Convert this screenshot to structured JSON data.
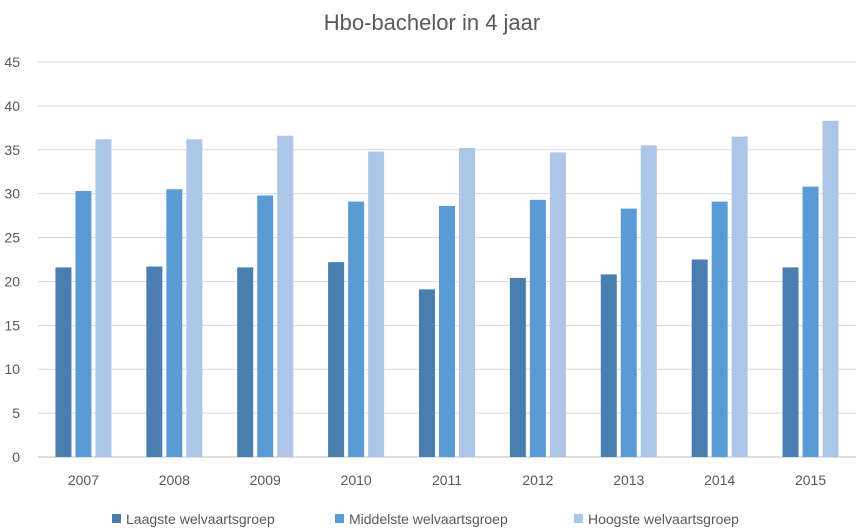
{
  "chart_data": {
    "type": "bar",
    "title": "Hbo-bachelor in 4 jaar",
    "xlabel": "",
    "ylabel": "",
    "categories": [
      "2007",
      "2008",
      "2009",
      "2010",
      "2011",
      "2012",
      "2013",
      "2014",
      "2015"
    ],
    "ylim": [
      0,
      45
    ],
    "yticks": [
      0,
      5,
      10,
      15,
      20,
      25,
      30,
      35,
      40,
      45
    ],
    "grid": true,
    "legend_position": "bottom",
    "series": [
      {
        "name": "Laagste welvaartsgroep",
        "color": "#4a7db0",
        "values": [
          21.6,
          21.7,
          21.6,
          22.2,
          19.1,
          20.4,
          20.8,
          22.5,
          21.6
        ]
      },
      {
        "name": "Middelste welvaartsgroep",
        "color": "#5b9bd5",
        "values": [
          30.3,
          30.5,
          29.8,
          29.1,
          28.6,
          29.3,
          28.3,
          29.1,
          30.8
        ]
      },
      {
        "name": "Hoogste welvaartsgroep",
        "color": "#adc5e7",
        "values": [
          36.2,
          36.2,
          36.6,
          34.8,
          35.2,
          34.7,
          35.5,
          36.5,
          38.3
        ]
      }
    ]
  }
}
